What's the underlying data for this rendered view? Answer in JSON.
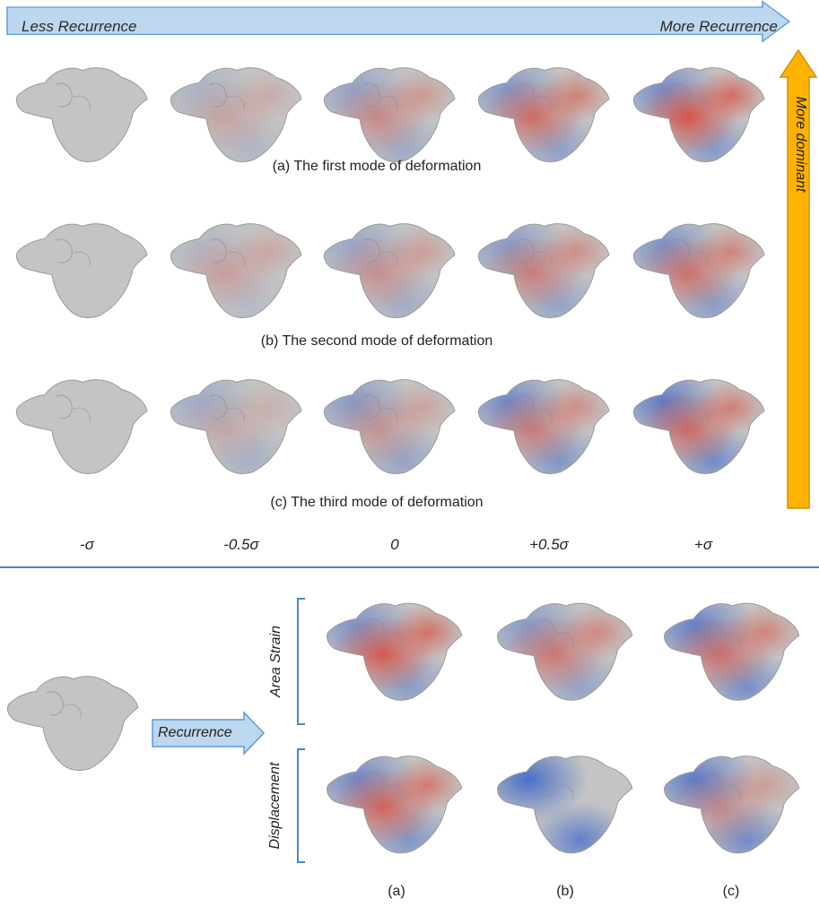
{
  "top_arrow": {
    "left_label": "Less Recurrence",
    "right_label": "More Recurrence",
    "color": "#bcd7ee",
    "border": "#5b9bd5"
  },
  "side_arrow": {
    "label": "More dominant",
    "color": "#ffb200",
    "border": "#d48f00"
  },
  "rows": [
    {
      "caption": "(a) The first mode of deformation",
      "shades": [
        {
          "warm": 0.0,
          "cool": 0.0
        },
        {
          "warm": 0.25,
          "cool": 0.2
        },
        {
          "warm": 0.45,
          "cool": 0.4
        },
        {
          "warm": 0.7,
          "cool": 0.55
        },
        {
          "warm": 0.9,
          "cool": 0.65
        }
      ]
    },
    {
      "caption": "(b) The second mode of deformation",
      "shades": [
        {
          "warm": 0.0,
          "cool": 0.0
        },
        {
          "warm": 0.3,
          "cool": 0.15
        },
        {
          "warm": 0.4,
          "cool": 0.35
        },
        {
          "warm": 0.55,
          "cool": 0.5
        },
        {
          "warm": 0.65,
          "cool": 0.6
        }
      ]
    },
    {
      "caption": "(c) The third mode of deformation",
      "shades": [
        {
          "warm": 0.0,
          "cool": 0.0
        },
        {
          "warm": 0.2,
          "cool": 0.3
        },
        {
          "warm": 0.35,
          "cool": 0.5
        },
        {
          "warm": 0.55,
          "cool": 0.7
        },
        {
          "warm": 0.7,
          "cool": 0.85
        }
      ]
    }
  ],
  "sigma_labels": [
    "-σ",
    "-0.5σ",
    "0",
    "+0.5σ",
    "+σ"
  ],
  "bottom": {
    "recurrence_label": "Recurrence",
    "group_labels": [
      "Area Strain",
      "Displacement"
    ],
    "column_labels": [
      "(a)",
      "(b)",
      "(c)"
    ],
    "area_strain_shades": [
      {
        "warm": 0.85,
        "cool": 0.6
      },
      {
        "warm": 0.6,
        "cool": 0.5
      },
      {
        "warm": 0.65,
        "cool": 0.8
      }
    ],
    "displacement_shades": [
      {
        "warm": 0.75,
        "cool": 0.7
      },
      {
        "warm": 0.0,
        "cool": 1.0
      },
      {
        "warm": 0.4,
        "cool": 0.85
      }
    ]
  },
  "colors": {
    "mesh_gray": "#c4c4c4",
    "warm": "#d94a3a",
    "cool": "#4a6fc9",
    "divider": "#4a86c5"
  }
}
